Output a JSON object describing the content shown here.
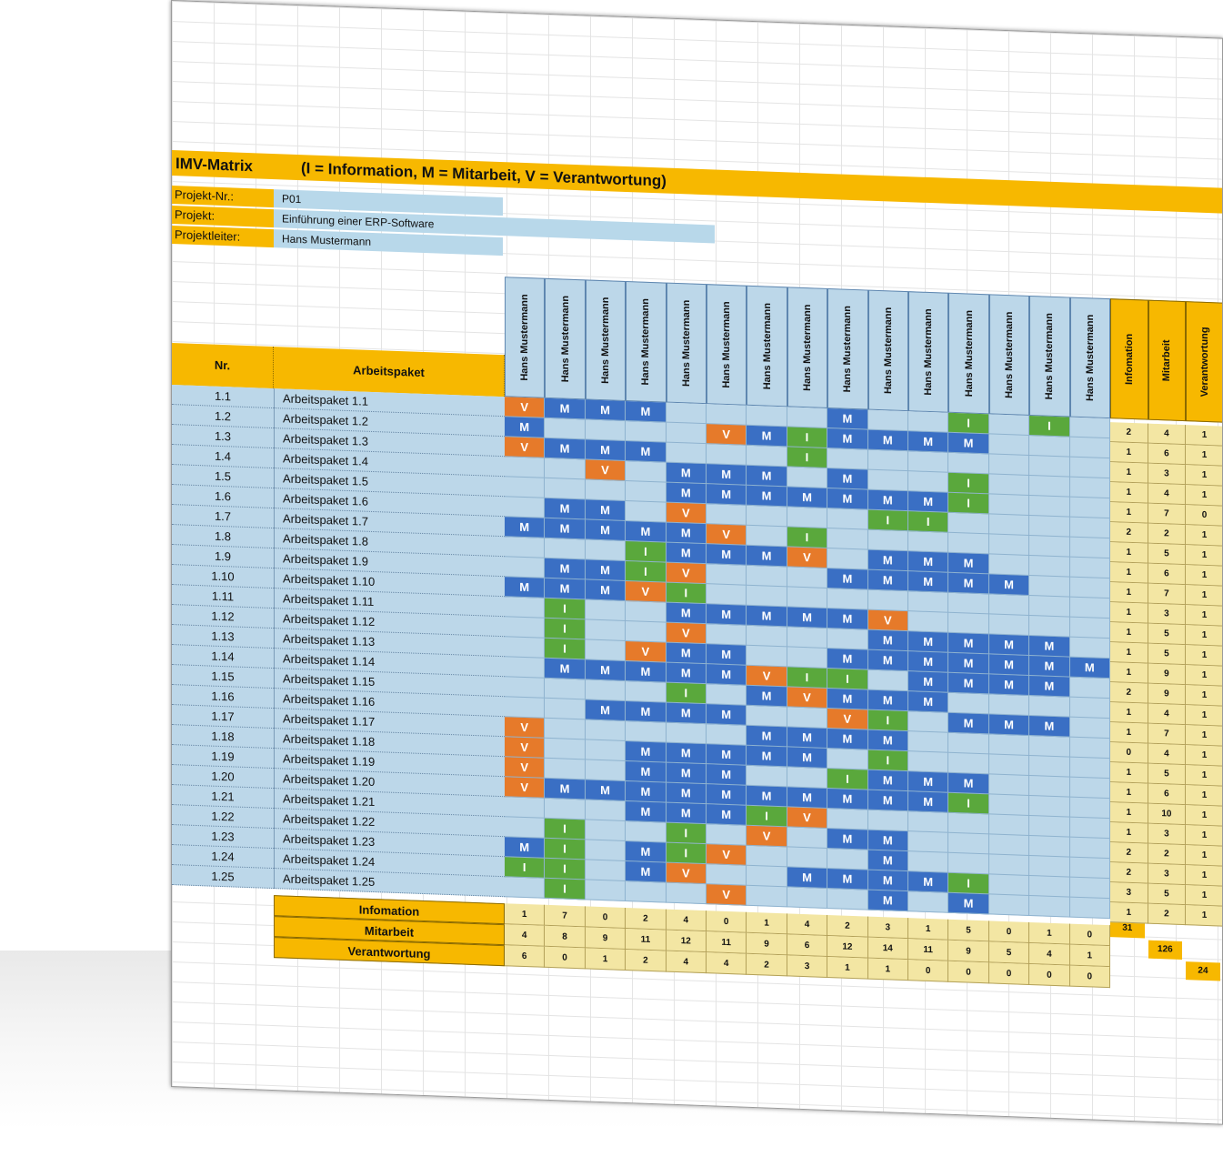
{
  "title": "IMV-Matrix",
  "legend": "(I = Information, M = Mitarbeit, V = Verantwortung)",
  "project_info": [
    {
      "label": "Projekt-Nr.:",
      "value": "P01"
    },
    {
      "label": "Projekt:",
      "value": "Einführung einer ERP-Software"
    },
    {
      "label": "Projektleiter:",
      "value": "Hans Mustermann"
    }
  ],
  "columns": {
    "nr": "Nr.",
    "package": "Arbeitspaket"
  },
  "persons": [
    "Hans Mustermann",
    "Hans Mustermann",
    "Hans Mustermann",
    "Hans Mustermann",
    "Hans Mustermann",
    "Hans Mustermann",
    "Hans Mustermann",
    "Hans Mustermann",
    "Hans Mustermann",
    "Hans Mustermann",
    "Hans Mustermann",
    "Hans Mustermann",
    "Hans Mustermann",
    "Hans Mustermann",
    "Hans Mustermann"
  ],
  "sum_headers": [
    "Infomation",
    "Mitarbeit",
    "Verantwortung"
  ],
  "rows": [
    {
      "nr": "1.1",
      "name": "Arbeitspaket 1.1",
      "cells": [
        "V",
        "M",
        "M",
        "M",
        "",
        "",
        "",
        "",
        "M",
        "",
        "",
        "I",
        "",
        "I",
        ""
      ],
      "sums": [
        "2",
        "4",
        "1"
      ]
    },
    {
      "nr": "1.2",
      "name": "Arbeitspaket 1.2",
      "cells": [
        "M",
        "",
        "",
        "",
        "",
        "V",
        "M",
        "I",
        "M",
        "M",
        "M",
        "M",
        "",
        "",
        ""
      ],
      "sums": [
        "1",
        "6",
        "1"
      ]
    },
    {
      "nr": "1.3",
      "name": "Arbeitspaket 1.3",
      "cells": [
        "V",
        "M",
        "M",
        "M",
        "",
        "",
        "",
        "I",
        "",
        "",
        "",
        "",
        "",
        "",
        ""
      ],
      "sums": [
        "1",
        "3",
        "1"
      ]
    },
    {
      "nr": "1.4",
      "name": "Arbeitspaket 1.4",
      "cells": [
        "",
        "",
        "V",
        "",
        "M",
        "M",
        "M",
        "",
        "M",
        "",
        "",
        "I",
        "",
        "",
        ""
      ],
      "sums": [
        "1",
        "4",
        "1"
      ]
    },
    {
      "nr": "1.5",
      "name": "Arbeitspaket 1.5",
      "cells": [
        "",
        "",
        "",
        "",
        "M",
        "M",
        "M",
        "M",
        "M",
        "M",
        "M",
        "I",
        "",
        "",
        ""
      ],
      "sums": [
        "1",
        "7",
        "0"
      ]
    },
    {
      "nr": "1.6",
      "name": "Arbeitspaket 1.6",
      "cells": [
        "",
        "M",
        "M",
        "",
        "V",
        "",
        "",
        "",
        "",
        "I",
        "I",
        "",
        "",
        "",
        ""
      ],
      "sums": [
        "2",
        "2",
        "1"
      ]
    },
    {
      "nr": "1.7",
      "name": "Arbeitspaket 1.7",
      "cells": [
        "M",
        "M",
        "M",
        "M",
        "M",
        "V",
        "",
        "I",
        "",
        "",
        "",
        "",
        "",
        "",
        ""
      ],
      "sums": [
        "1",
        "5",
        "1"
      ]
    },
    {
      "nr": "1.8",
      "name": "Arbeitspaket 1.8",
      "cells": [
        "",
        "",
        "",
        "I",
        "M",
        "M",
        "M",
        "V",
        "",
        "M",
        "M",
        "M",
        "",
        "",
        ""
      ],
      "sums": [
        "1",
        "6",
        "1"
      ]
    },
    {
      "nr": "1.9",
      "name": "Arbeitspaket 1.9",
      "cells": [
        "",
        "M",
        "M",
        "I",
        "V",
        "",
        "",
        "",
        "M",
        "M",
        "M",
        "M",
        "M",
        "",
        ""
      ],
      "sums": [
        "1",
        "7",
        "1"
      ]
    },
    {
      "nr": "1.10",
      "name": "Arbeitspaket 1.10",
      "cells": [
        "M",
        "M",
        "M",
        "V",
        "I",
        "",
        "",
        "",
        "",
        "",
        "",
        "",
        "",
        "",
        ""
      ],
      "sums": [
        "1",
        "3",
        "1"
      ]
    },
    {
      "nr": "1.11",
      "name": "Arbeitspaket 1.11",
      "cells": [
        "",
        "I",
        "",
        "",
        "M",
        "M",
        "M",
        "M",
        "M",
        "V",
        "",
        "",
        "",
        "",
        ""
      ],
      "sums": [
        "1",
        "5",
        "1"
      ]
    },
    {
      "nr": "1.12",
      "name": "Arbeitspaket 1.12",
      "cells": [
        "",
        "I",
        "",
        "",
        "V",
        "",
        "",
        "",
        "",
        "M",
        "M",
        "M",
        "M",
        "M",
        ""
      ],
      "sums": [
        "1",
        "5",
        "1"
      ]
    },
    {
      "nr": "1.13",
      "name": "Arbeitspaket 1.13",
      "cells": [
        "",
        "I",
        "",
        "V",
        "M",
        "M",
        "",
        "",
        "M",
        "M",
        "M",
        "M",
        "M",
        "M",
        "M"
      ],
      "sums": [
        "1",
        "9",
        "1"
      ]
    },
    {
      "nr": "1.14",
      "name": "Arbeitspaket 1.14",
      "cells": [
        "",
        "M",
        "M",
        "M",
        "M",
        "M",
        "V",
        "I",
        "I",
        "",
        "M",
        "M",
        "M",
        "M",
        ""
      ],
      "sums": [
        "2",
        "9",
        "1"
      ]
    },
    {
      "nr": "1.15",
      "name": "Arbeitspaket 1.15",
      "cells": [
        "",
        "",
        "",
        "",
        "I",
        "",
        "M",
        "V",
        "M",
        "M",
        "M",
        "",
        "",
        "",
        ""
      ],
      "sums": [
        "1",
        "4",
        "1"
      ]
    },
    {
      "nr": "1.16",
      "name": "Arbeitspaket 1.16",
      "cells": [
        "",
        "",
        "M",
        "M",
        "M",
        "M",
        "",
        "",
        "V",
        "I",
        "",
        "M",
        "M",
        "M",
        ""
      ],
      "sums": [
        "1",
        "7",
        "1"
      ]
    },
    {
      "nr": "1.17",
      "name": "Arbeitspaket 1.17",
      "cells": [
        "V",
        "",
        "",
        "",
        "",
        "",
        "M",
        "M",
        "M",
        "M",
        "",
        "",
        "",
        "",
        ""
      ],
      "sums": [
        "0",
        "4",
        "1"
      ]
    },
    {
      "nr": "1.18",
      "name": "Arbeitspaket 1.18",
      "cells": [
        "V",
        "",
        "",
        "M",
        "M",
        "M",
        "M",
        "M",
        "",
        "I",
        "",
        "",
        "",
        "",
        ""
      ],
      "sums": [
        "1",
        "5",
        "1"
      ]
    },
    {
      "nr": "1.19",
      "name": "Arbeitspaket 1.19",
      "cells": [
        "V",
        "",
        "",
        "M",
        "M",
        "M",
        "",
        "",
        "I",
        "M",
        "M",
        "M",
        "",
        "",
        ""
      ],
      "sums": [
        "1",
        "6",
        "1"
      ]
    },
    {
      "nr": "1.20",
      "name": "Arbeitspaket 1.20",
      "cells": [
        "V",
        "M",
        "M",
        "M",
        "M",
        "M",
        "M",
        "M",
        "M",
        "M",
        "M",
        "I",
        "",
        "",
        ""
      ],
      "sums": [
        "1",
        "10",
        "1"
      ]
    },
    {
      "nr": "1.21",
      "name": "Arbeitspaket 1.21",
      "cells": [
        "",
        "",
        "",
        "M",
        "M",
        "M",
        "I",
        "V",
        "",
        "",
        "",
        "",
        "",
        "",
        ""
      ],
      "sums": [
        "1",
        "3",
        "1"
      ]
    },
    {
      "nr": "1.22",
      "name": "Arbeitspaket 1.22",
      "cells": [
        "",
        "I",
        "",
        "",
        "I",
        "",
        "V",
        "",
        "M",
        "M",
        "",
        "",
        "",
        "",
        ""
      ],
      "sums": [
        "2",
        "2",
        "1"
      ]
    },
    {
      "nr": "1.23",
      "name": "Arbeitspaket 1.23",
      "cells": [
        "M",
        "I",
        "",
        "M",
        "I",
        "V",
        "",
        "",
        "",
        "M",
        "",
        "",
        "",
        "",
        ""
      ],
      "sums": [
        "2",
        "3",
        "1"
      ]
    },
    {
      "nr": "1.24",
      "name": "Arbeitspaket 1.24",
      "cells": [
        "I",
        "I",
        "",
        "M",
        "V",
        "",
        "",
        "M",
        "M",
        "M",
        "M",
        "I",
        "",
        "",
        ""
      ],
      "sums": [
        "3",
        "5",
        "1"
      ]
    },
    {
      "nr": "1.25",
      "name": "Arbeitspaket 1.25",
      "cells": [
        "",
        "I",
        "",
        "",
        "",
        "V",
        "",
        "",
        "",
        "M",
        "",
        "M",
        "",
        "",
        ""
      ],
      "sums": [
        "1",
        "2",
        "1"
      ]
    }
  ],
  "footer": {
    "labels": [
      "Infomation",
      "Mitarbeit",
      "Verantwortung"
    ],
    "information": [
      "1",
      "7",
      "0",
      "2",
      "4",
      "0",
      "1",
      "4",
      "2",
      "3",
      "1",
      "5",
      "0",
      "1",
      "0"
    ],
    "mitarbeit": [
      "4",
      "8",
      "9",
      "11",
      "12",
      "11",
      "9",
      "6",
      "12",
      "14",
      "11",
      "9",
      "5",
      "4",
      "1"
    ],
    "verantwortung": [
      "6",
      "0",
      "1",
      "2",
      "4",
      "4",
      "2",
      "3",
      "1",
      "1",
      "0",
      "0",
      "0",
      "0",
      "0"
    ],
    "totals": [
      "31",
      "126",
      "24"
    ]
  },
  "colors": {
    "M": "#3a6fc4",
    "V": "#e67a2a",
    "I": "#5aa83c",
    "accent": "#f7b800",
    "matrix_bg": "#bcd7e9"
  }
}
